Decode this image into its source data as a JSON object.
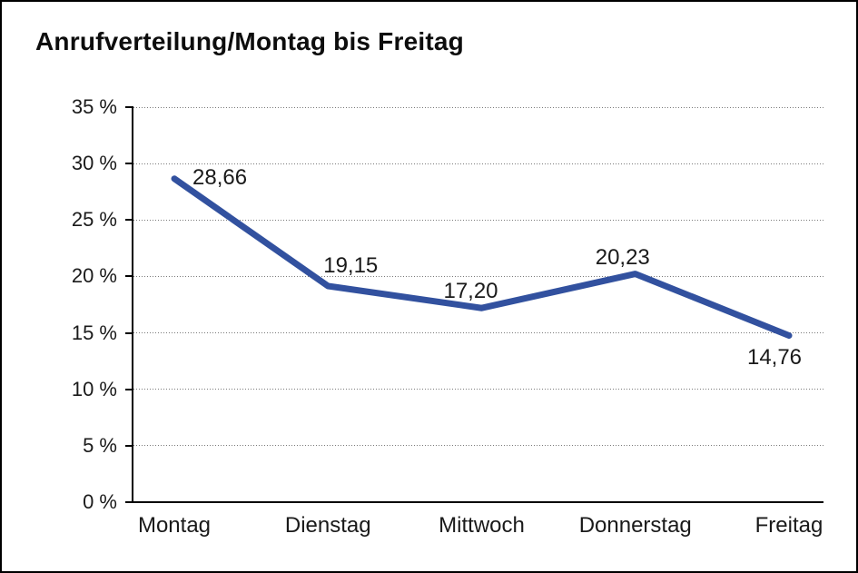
{
  "title": "Anrufverteilung/Montag bis Freitag",
  "chart_data": {
    "type": "line",
    "title": "Anrufverteilung/Montag bis Freitag",
    "categories": [
      "Montag",
      "Dienstag",
      "Mittwoch",
      "Donnerstag",
      "Freitag"
    ],
    "values": [
      28.66,
      19.15,
      17.2,
      20.23,
      14.76
    ],
    "point_labels": [
      "28,66",
      "19,15",
      "17,20",
      "20,23",
      "14,76"
    ],
    "y_tick_labels": [
      "35 %",
      "30 %",
      "25 %",
      "20 %",
      "15 %",
      "10 %",
      "5 %",
      "0 %"
    ],
    "xlabel": "",
    "ylabel": "",
    "ylim": [
      0,
      35
    ],
    "y_step": 5,
    "line_color": "#32519F",
    "grid": "horizontal-dotted",
    "legend": "none"
  }
}
